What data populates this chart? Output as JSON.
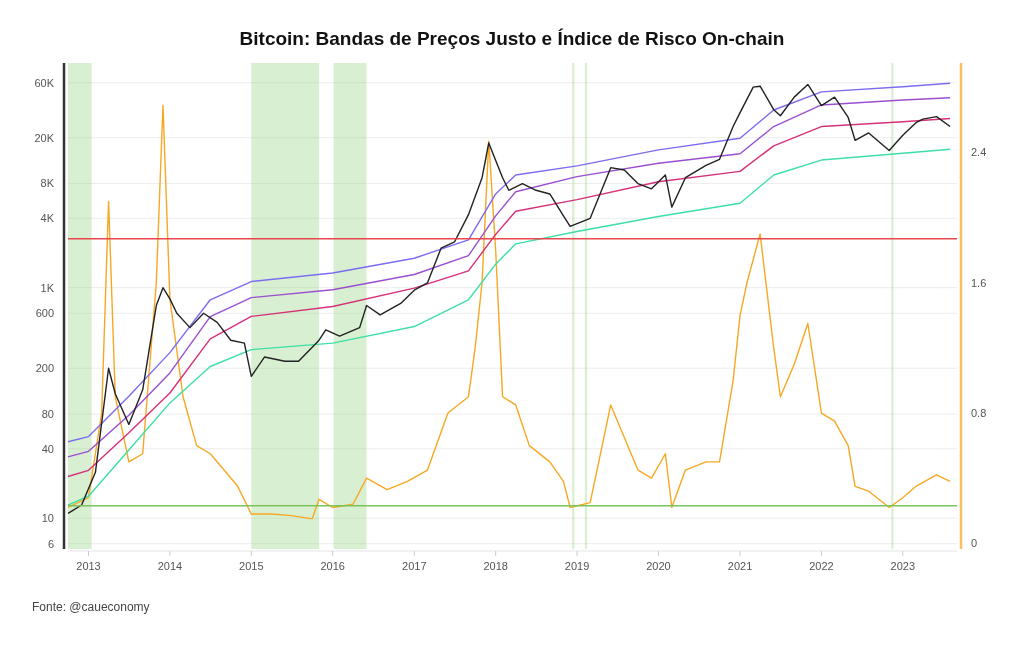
{
  "chart_data": {
    "type": "line",
    "title": "Bitcoin: Bandas de Preços Justo e Índice de Risco On-chain",
    "annotations": [
      "Fonte: @caueconomy"
    ],
    "log": "y",
    "grid": "y",
    "line_style": "solid",
    "xlim": [
      "2012-10-01",
      "2023-09-01"
    ],
    "xticks": [
      "2013",
      "2014",
      "2015",
      "2016",
      "2017",
      "2018",
      "2019",
      "2020",
      "2021",
      "2022",
      "2023"
    ],
    "ylim": [
      5.4,
      89000
    ],
    "yticks": [
      6,
      10,
      40,
      80,
      200,
      600,
      {
        "value": 1000,
        "label": "1K"
      },
      {
        "value": 4000,
        "label": "4K"
      },
      {
        "value": 8000,
        "label": "8K"
      },
      {
        "value": 20000,
        "label": "20K"
      },
      {
        "value": 60000,
        "label": "60K"
      }
    ],
    "y2lim": [
      -0.035,
      2.95
    ],
    "y2ticks": [
      0,
      0.8,
      1.6,
      2.4
    ],
    "bands": [
      {
        "axis": "x",
        "from": "2012-10-01",
        "to": "2013-01-15",
        "color": "#8fd07a"
      },
      {
        "axis": "x",
        "from": "2015-01-01",
        "to": "2015-11-01",
        "color": "#8fd07a"
      },
      {
        "axis": "x",
        "from": "2016-01-05",
        "to": "2016-06-01",
        "color": "#8fd07a"
      },
      {
        "axis": "x",
        "from": "2018-12-10",
        "to": "2018-12-20",
        "color": "#8fd07a"
      },
      {
        "axis": "x",
        "from": "2019-02-05",
        "to": "2019-02-15",
        "color": "#8fd07a"
      },
      {
        "axis": "x",
        "from": "2022-11-10",
        "to": "2022-11-20",
        "color": "#8fd07a"
      }
    ],
    "ref_lines": [
      {
        "axis": "y2",
        "value": 1.87,
        "color": "#e8474b"
      },
      {
        "axis": "y2",
        "value": 0.23,
        "color": "#7bc35a"
      }
    ],
    "series": [
      {
        "axis": "y2",
        "color": "#f7a823",
        "x": [
          "2012-10",
          "2013-01",
          "2013-03",
          "2013-04",
          "2013-05",
          "2013-07",
          "2013-09",
          "2013-11",
          "2013-12",
          "2014-01",
          "2014-03",
          "2014-05",
          "2014-07",
          "2014-09",
          "2014-11",
          "2015-01",
          "2015-04",
          "2015-07",
          "2015-10",
          "2015-11",
          "2016-01",
          "2016-04",
          "2016-06",
          "2016-09",
          "2016-12",
          "2017-03",
          "2017-06",
          "2017-09",
          "2017-10",
          "2017-11",
          "2017-12",
          "2018-01",
          "2018-02",
          "2018-04",
          "2018-06",
          "2018-09",
          "2018-11",
          "2018-12",
          "2019-03",
          "2019-06",
          "2019-08",
          "2019-10",
          "2019-12",
          "2020-02",
          "2020-03",
          "2020-05",
          "2020-08",
          "2020-10",
          "2020-12",
          "2021-01",
          "2021-02",
          "2021-04",
          "2021-06",
          "2021-07",
          "2021-09",
          "2021-11",
          "2022-01",
          "2022-03",
          "2022-05",
          "2022-06",
          "2022-08",
          "2022-11",
          "2023-01",
          "2023-03",
          "2023-06",
          "2023-08"
        ],
        "values": [
          0.22,
          0.28,
          0.8,
          2.1,
          0.9,
          0.5,
          0.55,
          1.6,
          2.69,
          1.5,
          0.9,
          0.6,
          0.55,
          0.45,
          0.35,
          0.18,
          0.18,
          0.17,
          0.15,
          0.27,
          0.22,
          0.24,
          0.4,
          0.33,
          0.38,
          0.45,
          0.8,
          0.9,
          1.2,
          1.6,
          2.47,
          1.8,
          0.9,
          0.85,
          0.6,
          0.5,
          0.38,
          0.22,
          0.25,
          0.85,
          0.65,
          0.45,
          0.4,
          0.55,
          0.22,
          0.45,
          0.5,
          0.5,
          1.0,
          1.4,
          1.6,
          1.9,
          1.2,
          0.9,
          1.1,
          1.35,
          0.8,
          0.75,
          0.6,
          0.35,
          0.32,
          0.22,
          0.28,
          0.35,
          0.42,
          0.38
        ]
      },
      {
        "color": "#7b6cf0",
        "x": [
          "2012-10",
          "2013-01",
          "2013-07",
          "2014-01",
          "2014-07",
          "2015-01",
          "2016-01",
          "2017-01",
          "2017-09",
          "2018-01",
          "2018-04",
          "2019-01",
          "2020-01",
          "2021-01",
          "2021-06",
          "2022-01",
          "2023-01",
          "2023-08"
        ],
        "values": [
          46,
          51,
          114,
          273,
          785,
          1130,
          1340,
          1800,
          2600,
          6500,
          9500,
          11400,
          15700,
          19800,
          34800,
          50000,
          55300,
          59300
        ]
      },
      {
        "color": "#9b4fd0",
        "x": [
          "2012-10",
          "2013-01",
          "2013-07",
          "2014-01",
          "2014-07",
          "2015-01",
          "2016-01",
          "2017-01",
          "2017-09",
          "2018-01",
          "2018-04",
          "2019-01",
          "2020-01",
          "2021-01",
          "2021-06",
          "2022-01",
          "2023-01",
          "2023-08"
        ],
        "values": [
          34,
          38,
          78,
          182,
          560,
          820,
          960,
          1300,
          1900,
          4200,
          6800,
          9200,
          12000,
          14500,
          25000,
          38500,
          42500,
          44500
        ]
      },
      {
        "color": "#d6307a",
        "x": [
          "2012-10",
          "2013-01",
          "2013-07",
          "2014-01",
          "2014-07",
          "2015-01",
          "2016-01",
          "2017-01",
          "2017-09",
          "2018-01",
          "2018-04",
          "2019-01",
          "2020-01",
          "2021-01",
          "2021-06",
          "2022-01",
          "2023-01",
          "2023-08"
        ],
        "values": [
          23,
          26,
          55,
          122,
          360,
          563,
          687,
          990,
          1400,
          2900,
          4600,
          5800,
          8300,
          10200,
          17000,
          25000,
          27500,
          29400
        ]
      },
      {
        "color": "#3ddfa6",
        "x": [
          "2012-10",
          "2013-01",
          "2013-07",
          "2014-01",
          "2014-07",
          "2015-01",
          "2016-01",
          "2017-01",
          "2017-09",
          "2018-01",
          "2018-04",
          "2019-01",
          "2020-01",
          "2021-01",
          "2021-06",
          "2022-01",
          "2023-01",
          "2023-08"
        ],
        "values": [
          13,
          15.5,
          39,
          100,
          207,
          290,
          330,
          460,
          785,
          1600,
          2400,
          3070,
          4140,
          5400,
          9500,
          12800,
          14650,
          15900
        ]
      },
      {
        "color": "#222222",
        "x": [
          "2012-10",
          "2012-12",
          "2013-02",
          "2013-04",
          "2013-05",
          "2013-07",
          "2013-09",
          "2013-11",
          "2013-12",
          "2014-01",
          "2014-02",
          "2014-04",
          "2014-06",
          "2014-08",
          "2014-10",
          "2014-12",
          "2015-01",
          "2015-03",
          "2015-06",
          "2015-08",
          "2015-11",
          "2015-12",
          "2016-02",
          "2016-05",
          "2016-06",
          "2016-08",
          "2016-11",
          "2017-01",
          "2017-03",
          "2017-05",
          "2017-07",
          "2017-09",
          "2017-11",
          "2017-12",
          "2018-02",
          "2018-03",
          "2018-05",
          "2018-07",
          "2018-09",
          "2018-11",
          "2018-12",
          "2019-03",
          "2019-06",
          "2019-08",
          "2019-10",
          "2019-12",
          "2020-02",
          "2020-03",
          "2020-05",
          "2020-08",
          "2020-10",
          "2020-12",
          "2021-01",
          "2021-03",
          "2021-04",
          "2021-06",
          "2021-07",
          "2021-09",
          "2021-11",
          "2022-01",
          "2022-03",
          "2022-05",
          "2022-06",
          "2022-08",
          "2022-11",
          "2023-01",
          "2023-03",
          "2023-04",
          "2023-06",
          "2023-08"
        ],
        "values": [
          11,
          13,
          25,
          200,
          120,
          65,
          130,
          700,
          1000,
          800,
          600,
          450,
          600,
          500,
          350,
          330,
          170,
          250,
          230,
          230,
          350,
          430,
          380,
          450,
          700,
          580,
          730,
          950,
          1100,
          2200,
          2500,
          4300,
          9000,
          18000,
          9000,
          7000,
          8000,
          7000,
          6500,
          4200,
          3400,
          4000,
          11000,
          10500,
          8000,
          7200,
          9500,
          5000,
          9000,
          11500,
          13000,
          25000,
          33000,
          55000,
          56000,
          35000,
          31000,
          45000,
          58000,
          38000,
          45000,
          30000,
          19000,
          22000,
          15500,
          21000,
          27000,
          29000,
          30500,
          25000
        ]
      }
    ]
  }
}
